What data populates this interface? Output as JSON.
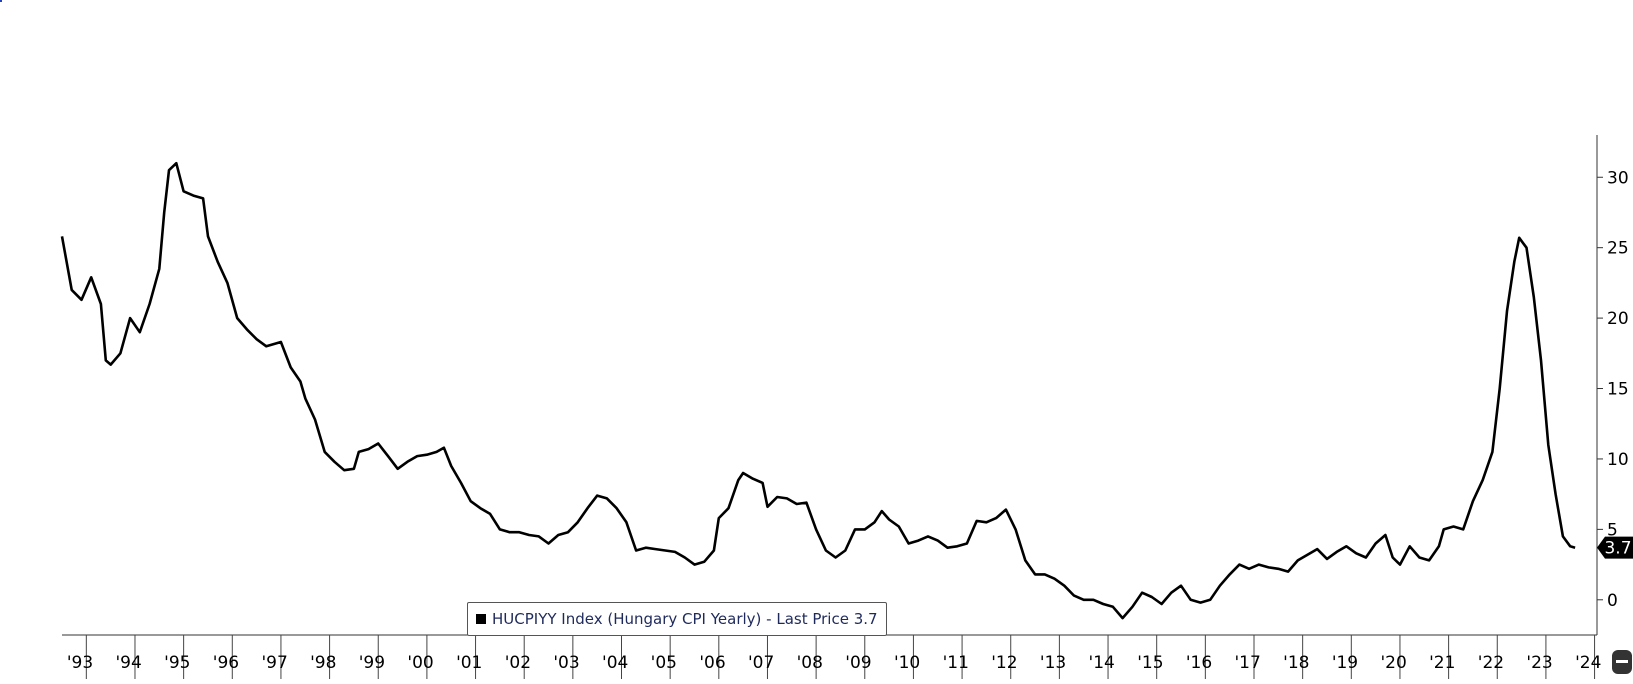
{
  "chart_data": {
    "type": "line",
    "title": "",
    "xlabel": "",
    "ylabel": "",
    "ylim": [
      -2.5,
      33
    ],
    "yticks": [
      0,
      5,
      10,
      15,
      20,
      25,
      30
    ],
    "y_axis_side": "right",
    "grid": false,
    "legend_position": "bottom-center",
    "x_tick_labels": [
      "'93",
      "'94",
      "'95",
      "'96",
      "'97",
      "'98",
      "'99",
      "'00",
      "'01",
      "'02",
      "'03",
      "'04",
      "'05",
      "'06",
      "'07",
      "'08",
      "'09",
      "'10",
      "'11",
      "'12",
      "'13",
      "'14",
      "'15",
      "'16",
      "'17",
      "'18",
      "'19",
      "'20",
      "'21",
      "'22",
      "'23",
      "'24"
    ],
    "last_price_label": "3.7",
    "series": [
      {
        "name": "HUCPIYY Index (Hungary CPI Yearly)",
        "color": "#000000",
        "points": [
          [
            1993.0,
            25.8
          ],
          [
            1993.2,
            22.0
          ],
          [
            1993.4,
            21.3
          ],
          [
            1993.6,
            22.9
          ],
          [
            1993.8,
            21.0
          ],
          [
            1993.9,
            17.0
          ],
          [
            1994.0,
            16.7
          ],
          [
            1994.2,
            17.5
          ],
          [
            1994.4,
            20.0
          ],
          [
            1994.6,
            19.0
          ],
          [
            1994.8,
            21.0
          ],
          [
            1995.0,
            23.5
          ],
          [
            1995.1,
            27.5
          ],
          [
            1995.2,
            30.5
          ],
          [
            1995.35,
            31.0
          ],
          [
            1995.5,
            29.0
          ],
          [
            1995.7,
            28.7
          ],
          [
            1995.9,
            28.5
          ],
          [
            1996.0,
            25.8
          ],
          [
            1996.2,
            24.0
          ],
          [
            1996.4,
            22.5
          ],
          [
            1996.6,
            20.0
          ],
          [
            1996.8,
            19.2
          ],
          [
            1997.0,
            18.5
          ],
          [
            1997.2,
            18.0
          ],
          [
            1997.5,
            18.3
          ],
          [
            1997.7,
            16.5
          ],
          [
            1997.9,
            15.5
          ],
          [
            1998.0,
            14.3
          ],
          [
            1998.2,
            12.8
          ],
          [
            1998.4,
            10.5
          ],
          [
            1998.6,
            9.8
          ],
          [
            1998.8,
            9.2
          ],
          [
            1999.0,
            9.3
          ],
          [
            1999.1,
            10.5
          ],
          [
            1999.3,
            10.7
          ],
          [
            1999.5,
            11.1
          ],
          [
            1999.7,
            10.2
          ],
          [
            1999.9,
            9.3
          ],
          [
            2000.1,
            9.8
          ],
          [
            2000.3,
            10.2
          ],
          [
            2000.5,
            10.3
          ],
          [
            2000.7,
            10.5
          ],
          [
            2000.85,
            10.8
          ],
          [
            2001.0,
            9.5
          ],
          [
            2001.2,
            8.3
          ],
          [
            2001.4,
            7.0
          ],
          [
            2001.6,
            6.5
          ],
          [
            2001.8,
            6.1
          ],
          [
            2002.0,
            5.0
          ],
          [
            2002.2,
            4.8
          ],
          [
            2002.4,
            4.8
          ],
          [
            2002.6,
            4.6
          ],
          [
            2002.8,
            4.5
          ],
          [
            2003.0,
            4.0
          ],
          [
            2003.2,
            4.6
          ],
          [
            2003.4,
            4.8
          ],
          [
            2003.6,
            5.5
          ],
          [
            2003.8,
            6.5
          ],
          [
            2004.0,
            7.4
          ],
          [
            2004.2,
            7.2
          ],
          [
            2004.4,
            6.5
          ],
          [
            2004.6,
            5.5
          ],
          [
            2004.8,
            3.5
          ],
          [
            2005.0,
            3.7
          ],
          [
            2005.2,
            3.6
          ],
          [
            2005.4,
            3.5
          ],
          [
            2005.6,
            3.4
          ],
          [
            2005.8,
            3.0
          ],
          [
            2006.0,
            2.5
          ],
          [
            2006.2,
            2.7
          ],
          [
            2006.4,
            3.5
          ],
          [
            2006.5,
            5.8
          ],
          [
            2006.7,
            6.5
          ],
          [
            2006.9,
            8.5
          ],
          [
            2007.0,
            9.0
          ],
          [
            2007.2,
            8.6
          ],
          [
            2007.4,
            8.3
          ],
          [
            2007.5,
            6.6
          ],
          [
            2007.7,
            7.3
          ],
          [
            2007.9,
            7.2
          ],
          [
            2008.1,
            6.8
          ],
          [
            2008.3,
            6.9
          ],
          [
            2008.5,
            5.0
          ],
          [
            2008.7,
            3.5
          ],
          [
            2008.9,
            3.0
          ],
          [
            2009.1,
            3.5
          ],
          [
            2009.3,
            5.0
          ],
          [
            2009.5,
            5.0
          ],
          [
            2009.7,
            5.5
          ],
          [
            2009.85,
            6.3
          ],
          [
            2010.0,
            5.7
          ],
          [
            2010.2,
            5.2
          ],
          [
            2010.4,
            4.0
          ],
          [
            2010.6,
            4.2
          ],
          [
            2010.8,
            4.5
          ],
          [
            2011.0,
            4.2
          ],
          [
            2011.2,
            3.7
          ],
          [
            2011.4,
            3.8
          ],
          [
            2011.6,
            4.0
          ],
          [
            2011.8,
            5.6
          ],
          [
            2012.0,
            5.5
          ],
          [
            2012.2,
            5.8
          ],
          [
            2012.4,
            6.4
          ],
          [
            2012.6,
            5.0
          ],
          [
            2012.8,
            2.8
          ],
          [
            2013.0,
            1.8
          ],
          [
            2013.2,
            1.8
          ],
          [
            2013.4,
            1.5
          ],
          [
            2013.6,
            1.0
          ],
          [
            2013.8,
            0.3
          ],
          [
            2014.0,
            0.0
          ],
          [
            2014.2,
            0.0
          ],
          [
            2014.4,
            -0.3
          ],
          [
            2014.6,
            -0.5
          ],
          [
            2014.8,
            -1.3
          ],
          [
            2015.0,
            -0.5
          ],
          [
            2015.2,
            0.5
          ],
          [
            2015.4,
            0.2
          ],
          [
            2015.6,
            -0.3
          ],
          [
            2015.8,
            0.5
          ],
          [
            2016.0,
            1.0
          ],
          [
            2016.2,
            0.0
          ],
          [
            2016.4,
            -0.2
          ],
          [
            2016.6,
            0.0
          ],
          [
            2016.8,
            1.0
          ],
          [
            2017.0,
            1.8
          ],
          [
            2017.2,
            2.5
          ],
          [
            2017.4,
            2.2
          ],
          [
            2017.6,
            2.5
          ],
          [
            2017.8,
            2.3
          ],
          [
            2018.0,
            2.2
          ],
          [
            2018.2,
            2.0
          ],
          [
            2018.4,
            2.8
          ],
          [
            2018.6,
            3.2
          ],
          [
            2018.8,
            3.6
          ],
          [
            2019.0,
            2.9
          ],
          [
            2019.2,
            3.4
          ],
          [
            2019.4,
            3.8
          ],
          [
            2019.6,
            3.3
          ],
          [
            2019.8,
            3.0
          ],
          [
            2020.0,
            4.0
          ],
          [
            2020.2,
            4.6
          ],
          [
            2020.35,
            3.0
          ],
          [
            2020.5,
            2.5
          ],
          [
            2020.7,
            3.8
          ],
          [
            2020.9,
            3.0
          ],
          [
            2021.1,
            2.8
          ],
          [
            2021.3,
            3.8
          ],
          [
            2021.4,
            5.0
          ],
          [
            2021.6,
            5.2
          ],
          [
            2021.8,
            5.0
          ],
          [
            2022.0,
            7.0
          ],
          [
            2022.2,
            8.5
          ],
          [
            2022.4,
            10.5
          ],
          [
            2022.55,
            15.0
          ],
          [
            2022.7,
            20.5
          ],
          [
            2022.85,
            24.0
          ],
          [
            2022.95,
            25.7
          ],
          [
            2023.1,
            25.0
          ],
          [
            2023.25,
            21.5
          ],
          [
            2023.4,
            17.0
          ],
          [
            2023.55,
            11.0
          ],
          [
            2023.7,
            7.5
          ],
          [
            2023.85,
            4.5
          ],
          [
            2024.0,
            3.8
          ],
          [
            2024.1,
            3.7
          ]
        ]
      }
    ],
    "legend": {
      "label": "HUCPIYY Index (Hungary CPI Yearly) - Last Price 3.7"
    }
  }
}
